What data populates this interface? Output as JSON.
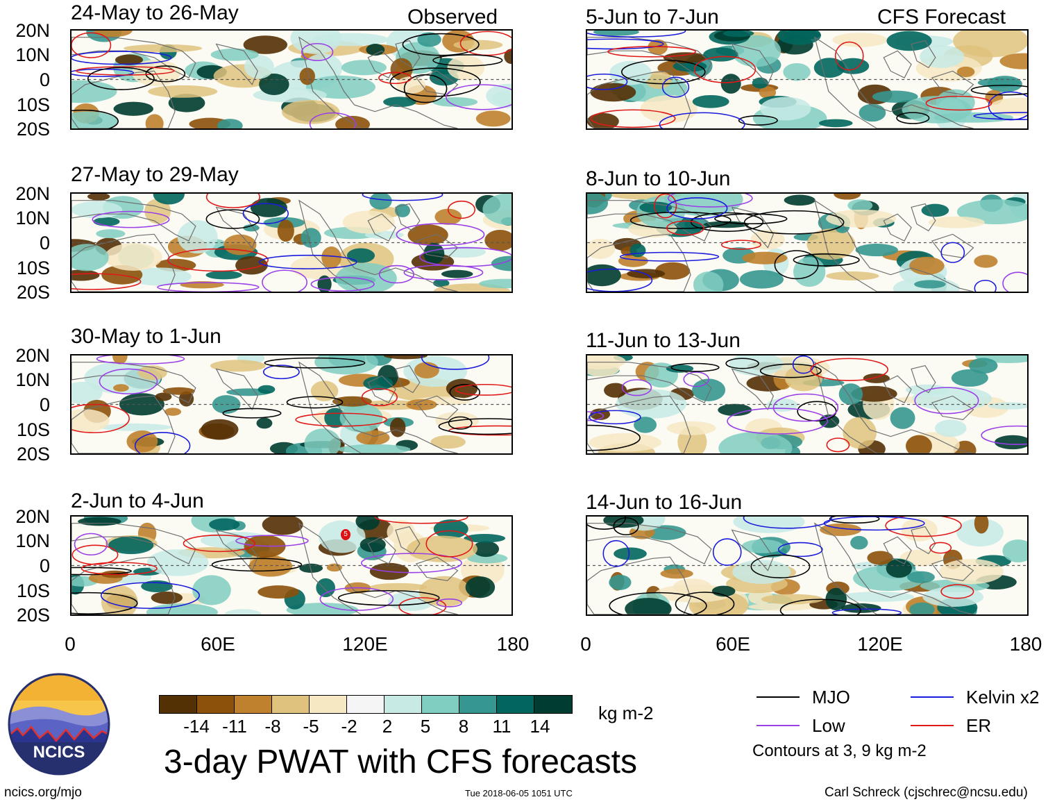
{
  "panels": [
    {
      "id": "obs1",
      "title": "24-May to 26-May",
      "corner": "Observed"
    },
    {
      "id": "obs2",
      "title": "27-May to 29-May",
      "corner": ""
    },
    {
      "id": "obs3",
      "title": "30-May to 1-Jun",
      "corner": ""
    },
    {
      "id": "obs4",
      "title": "2-Jun to 4-Jun",
      "corner": ""
    },
    {
      "id": "fc1",
      "title": "5-Jun to 7-Jun",
      "corner": "CFS Forecast"
    },
    {
      "id": "fc2",
      "title": "8-Jun to 10-Jun",
      "corner": ""
    },
    {
      "id": "fc3",
      "title": "11-Jun to 13-Jun",
      "corner": ""
    },
    {
      "id": "fc4",
      "title": "14-Jun to 16-Jun",
      "corner": ""
    }
  ],
  "lat_labels": [
    "20N",
    "10N",
    "0",
    "10S",
    "20S"
  ],
  "lon_labels": [
    "0",
    "60E",
    "120E",
    "180"
  ],
  "colorbar": {
    "colors": [
      "#543005",
      "#8c510a",
      "#bf812d",
      "#dfc27d",
      "#f6e8c3",
      "#f5f5f5",
      "#c7eae5",
      "#80cdc1",
      "#35978f",
      "#01665e",
      "#003c30"
    ],
    "ticks": [
      "-14",
      "-11",
      "-8",
      "-5",
      "-2",
      "2",
      "5",
      "8",
      "11",
      "14"
    ],
    "units": "kg m-2"
  },
  "title": "3-day PWAT with CFS forecasts",
  "legend": {
    "items": [
      {
        "label": "MJO",
        "color": "#000000"
      },
      {
        "label": "Kelvin x2",
        "color": "#1a1adc"
      },
      {
        "label": "Low",
        "color": "#9a3ee8"
      },
      {
        "label": "ER",
        "color": "#e01818"
      }
    ],
    "note": "Contours at 3, 9 kg m-2"
  },
  "logo_text": "NCICS",
  "footer": {
    "left": "ncics.org/mjo",
    "middle": "Tue 2018-06-05 1051 UTC",
    "right": "Carl Schreck (cjschrec@ncsu.edu)"
  },
  "storm_marker": "5"
}
